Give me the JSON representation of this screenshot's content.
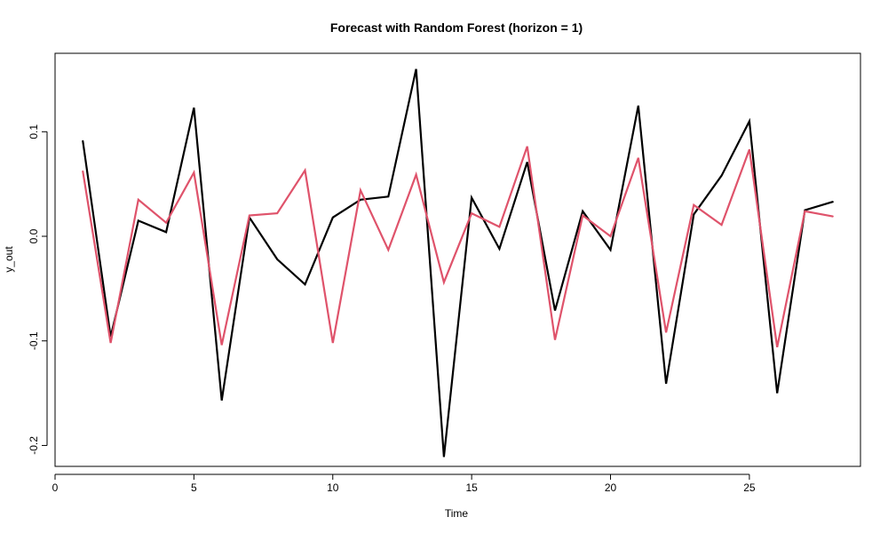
{
  "chart_data": {
    "type": "line",
    "title": "Forecast with Random Forest (horizon = 1)",
    "xlabel": "Time",
    "ylabel": "y_out",
    "xlim": [
      0,
      29
    ],
    "ylim": [
      -0.22,
      0.175
    ],
    "xticks": [
      0,
      5,
      10,
      15,
      20,
      25
    ],
    "xtick_labels": [
      "0",
      "5",
      "10",
      "15",
      "20",
      "25"
    ],
    "yticks": [
      -0.2,
      -0.1,
      0.0,
      0.1
    ],
    "ytick_labels": [
      "-0.2",
      "-0.1",
      "0.0",
      "0.1"
    ],
    "grid": false,
    "legend": "none",
    "x": [
      1,
      2,
      3,
      4,
      5,
      6,
      7,
      8,
      9,
      10,
      11,
      12,
      13,
      14,
      15,
      16,
      17,
      18,
      19,
      20,
      21,
      22,
      23,
      24,
      25,
      26,
      27,
      28
    ],
    "series": [
      {
        "color": "#000000",
        "values": [
          0.091,
          -0.096,
          0.015,
          0.004,
          0.123,
          -0.157,
          0.018,
          -0.022,
          -0.046,
          0.018,
          0.035,
          0.038,
          0.16,
          -0.211,
          0.037,
          -0.012,
          0.071,
          -0.071,
          0.024,
          -0.013,
          0.125,
          -0.141,
          0.021,
          0.058,
          0.11,
          -0.15,
          0.025,
          0.033
        ]
      },
      {
        "color": "#DF536B",
        "values": [
          0.062,
          -0.102,
          0.035,
          0.013,
          0.061,
          -0.104,
          0.02,
          0.022,
          0.063,
          -0.102,
          0.044,
          -0.013,
          0.059,
          -0.044,
          0.022,
          0.009,
          0.086,
          -0.099,
          0.02,
          0.0,
          0.075,
          -0.092,
          0.03,
          0.011,
          0.083,
          -0.106,
          0.024,
          0.019
        ]
      }
    ]
  }
}
